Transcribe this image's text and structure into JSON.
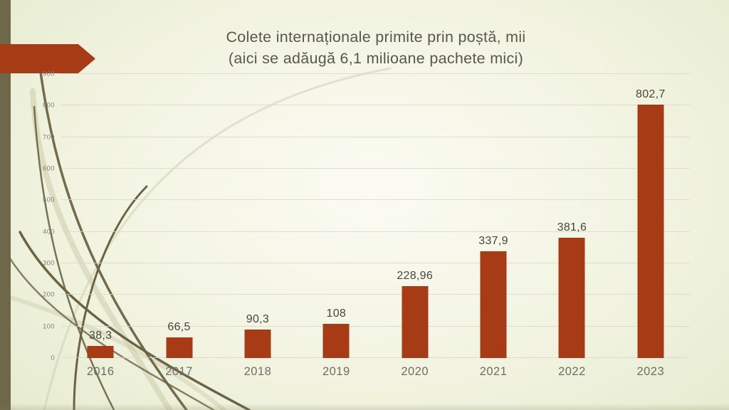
{
  "chart_data": {
    "type": "bar",
    "title": "Colete internaționale primite prin poștă, mii (aici se adăugă 6,1 milioane pachete mici)",
    "title_lines": [
      "Colete internaționale primite prin poștă, mii",
      "(aici se adăugă 6,1 milioane pachete mici)"
    ],
    "categories": [
      "2016",
      "2017",
      "2018",
      "2019",
      "2020",
      "2021",
      "2022",
      "2023"
    ],
    "values": [
      38.3,
      66.5,
      90.3,
      108,
      228.96,
      337.9,
      381.6,
      802.7
    ],
    "value_labels": [
      "38,3",
      "66,5",
      "90,3",
      "108",
      "228,96",
      "337,9",
      "381,6",
      "802,7"
    ],
    "xlabel": "",
    "ylabel": "",
    "ylim": [
      0,
      900
    ],
    "yticks": [
      0,
      100,
      200,
      300,
      400,
      500,
      600,
      700,
      800,
      900
    ],
    "grid": true,
    "legend": false,
    "bar_color": "#a63b16"
  },
  "theme": {
    "accent_red": "#a63b16",
    "strip_olive": "#6e6749",
    "curve_dark": "#6b6345",
    "curve_light": "#c9c8a5",
    "background_center": "#fbfbf3",
    "background_edge": "#dce3c2",
    "gridline": "#d9d6cd",
    "title_text": "#57574e",
    "label_text": "#45453e",
    "axis_text": "#6e6e65",
    "tick_text": "#81807a"
  }
}
